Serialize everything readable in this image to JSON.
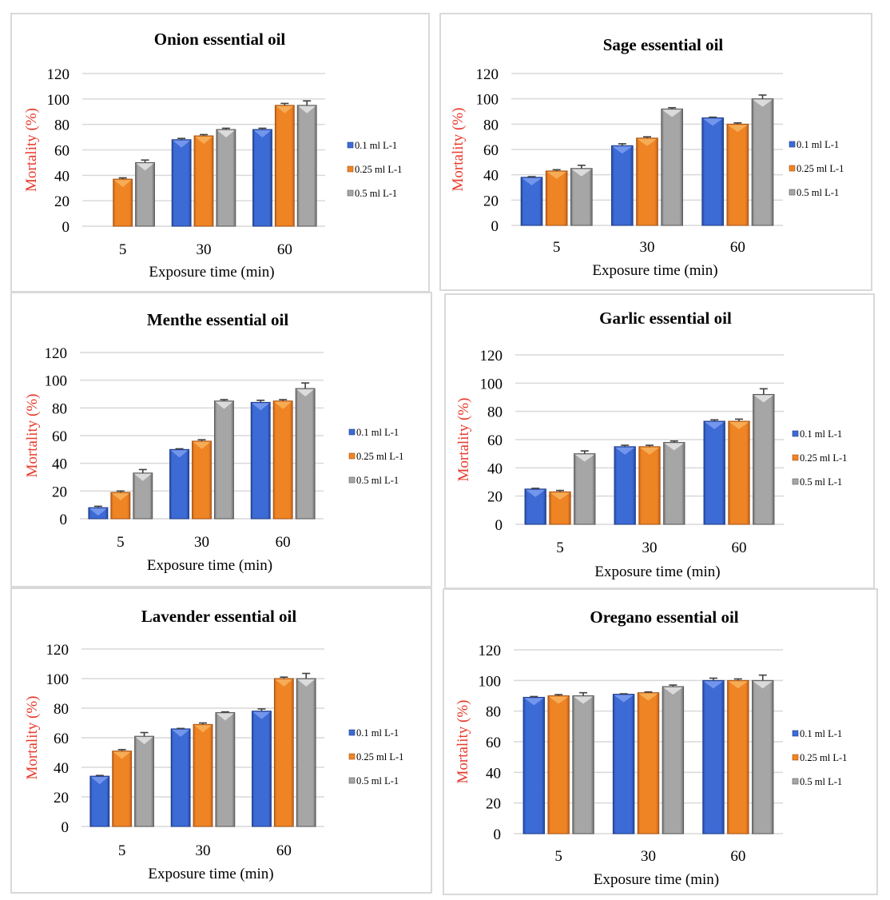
{
  "figure": {
    "series_colors": {
      "0.1 ml L-1": "#3c6bd6",
      "0.25 ml L-1": "#ef8424",
      "0.5 ml L-1": "#a6a6a6"
    },
    "ylabel_color": "#e8392b"
  },
  "chart_data": [
    {
      "type": "bar",
      "title": "Onion essential oil",
      "xlabel": "Exposure time (min)",
      "ylabel": "Mortality (%)",
      "categories": [
        "5",
        "30",
        "60"
      ],
      "ylim": [
        0,
        120
      ],
      "yticks": [
        "0",
        "20",
        "40",
        "60",
        "80",
        "100",
        "120"
      ],
      "grid": true,
      "legend_position": "right",
      "series": [
        {
          "name": "0.1 ml L-1",
          "values": [
            0,
            68,
            76
          ],
          "errors": [
            0,
            1,
            1
          ]
        },
        {
          "name": "0.25 ml L-1",
          "values": [
            37,
            71,
            95
          ],
          "errors": [
            1,
            1,
            1.5
          ]
        },
        {
          "name": "0.5 ml L-1",
          "values": [
            50,
            76,
            95
          ],
          "errors": [
            2,
            1,
            3.5
          ]
        }
      ]
    },
    {
      "type": "bar",
      "title": "Sage essential oil",
      "xlabel": "Exposure time (min)",
      "ylabel": "Mortality (%)",
      "categories": [
        "5",
        "30",
        "60"
      ],
      "ylim": [
        0,
        120
      ],
      "yticks": [
        "0",
        "20",
        "40",
        "60",
        "80",
        "100",
        "120"
      ],
      "grid": true,
      "legend_position": "right",
      "series": [
        {
          "name": "0.1 ml L-1",
          "values": [
            38,
            63,
            85
          ],
          "errors": [
            0.5,
            1.5,
            0.5
          ]
        },
        {
          "name": "0.25 ml L-1",
          "values": [
            43,
            69,
            80
          ],
          "errors": [
            1,
            1,
            1
          ]
        },
        {
          "name": "0.5 ml L-1",
          "values": [
            45,
            92,
            100
          ],
          "errors": [
            2.5,
            1,
            3
          ]
        }
      ]
    },
    {
      "type": "bar",
      "title": "Menthe essential oil",
      "xlabel": "Exposure time (min)",
      "ylabel": "Mortality (%)",
      "categories": [
        "5",
        "30",
        "60"
      ],
      "ylim": [
        0,
        120
      ],
      "yticks": [
        "0",
        "20",
        "40",
        "60",
        "80",
        "100",
        "120"
      ],
      "grid": true,
      "legend_position": "right",
      "series": [
        {
          "name": "0.1 ml L-1",
          "values": [
            8,
            50,
            84
          ],
          "errors": [
            1,
            0.5,
            1.5
          ]
        },
        {
          "name": "0.25 ml L-1",
          "values": [
            19,
            56,
            85
          ],
          "errors": [
            1,
            1,
            1
          ]
        },
        {
          "name": "0.5 ml L-1",
          "values": [
            33,
            85,
            94
          ],
          "errors": [
            2.5,
            1,
            4
          ]
        }
      ]
    },
    {
      "type": "bar",
      "title": "Garlic essential oil",
      "xlabel": "Exposure time (min)",
      "ylabel": "Mortality (%)",
      "categories": [
        "5",
        "30",
        "60"
      ],
      "ylim": [
        0,
        120
      ],
      "yticks": [
        "0",
        "20",
        "40",
        "60",
        "80",
        "100",
        "120"
      ],
      "grid": true,
      "legend_position": "right",
      "series": [
        {
          "name": "0.1 ml L-1",
          "values": [
            25,
            55,
            73
          ],
          "errors": [
            0.5,
            1,
            1
          ]
        },
        {
          "name": "0.25 ml L-1",
          "values": [
            23,
            55,
            73
          ],
          "errors": [
            1,
            1,
            1.5
          ]
        },
        {
          "name": "0.5 ml L-1",
          "values": [
            50,
            58,
            92
          ],
          "errors": [
            2,
            1,
            4
          ]
        }
      ]
    },
    {
      "type": "bar",
      "title": "Lavender essential oil",
      "xlabel": "Exposure time (min)",
      "ylabel": "Mortality (%)",
      "categories": [
        "5",
        "30",
        "60"
      ],
      "ylim": [
        0,
        120
      ],
      "yticks": [
        "0",
        "20",
        "40",
        "60",
        "80",
        "100",
        "120"
      ],
      "grid": true,
      "legend_position": "right",
      "series": [
        {
          "name": "0.1 ml L-1",
          "values": [
            34,
            66,
            78
          ],
          "errors": [
            0.5,
            0.3,
            1.5
          ]
        },
        {
          "name": "0.25 ml L-1",
          "values": [
            51,
            69,
            100
          ],
          "errors": [
            1,
            1,
            1
          ]
        },
        {
          "name": "0.5 ml L-1",
          "values": [
            61,
            77,
            100
          ],
          "errors": [
            2.5,
            0.5,
            3.5
          ]
        }
      ]
    },
    {
      "type": "bar",
      "title": "Oregano essential oil",
      "xlabel": "Exposure time (min)",
      "ylabel": "Mortality (%)",
      "categories": [
        "5",
        "30",
        "60"
      ],
      "ylim": [
        0,
        120
      ],
      "yticks": [
        "0",
        "20",
        "40",
        "60",
        "80",
        "100",
        "120"
      ],
      "grid": true,
      "legend_position": "right",
      "series": [
        {
          "name": "0.1 ml L-1",
          "values": [
            89,
            91,
            100
          ],
          "errors": [
            0.5,
            0.3,
            1.5
          ]
        },
        {
          "name": "0.25 ml L-1",
          "values": [
            90,
            92,
            100
          ],
          "errors": [
            0.8,
            0.5,
            1
          ]
        },
        {
          "name": "0.5 ml L-1",
          "values": [
            90,
            96,
            100
          ],
          "errors": [
            2,
            1,
            3.5
          ]
        }
      ]
    }
  ]
}
